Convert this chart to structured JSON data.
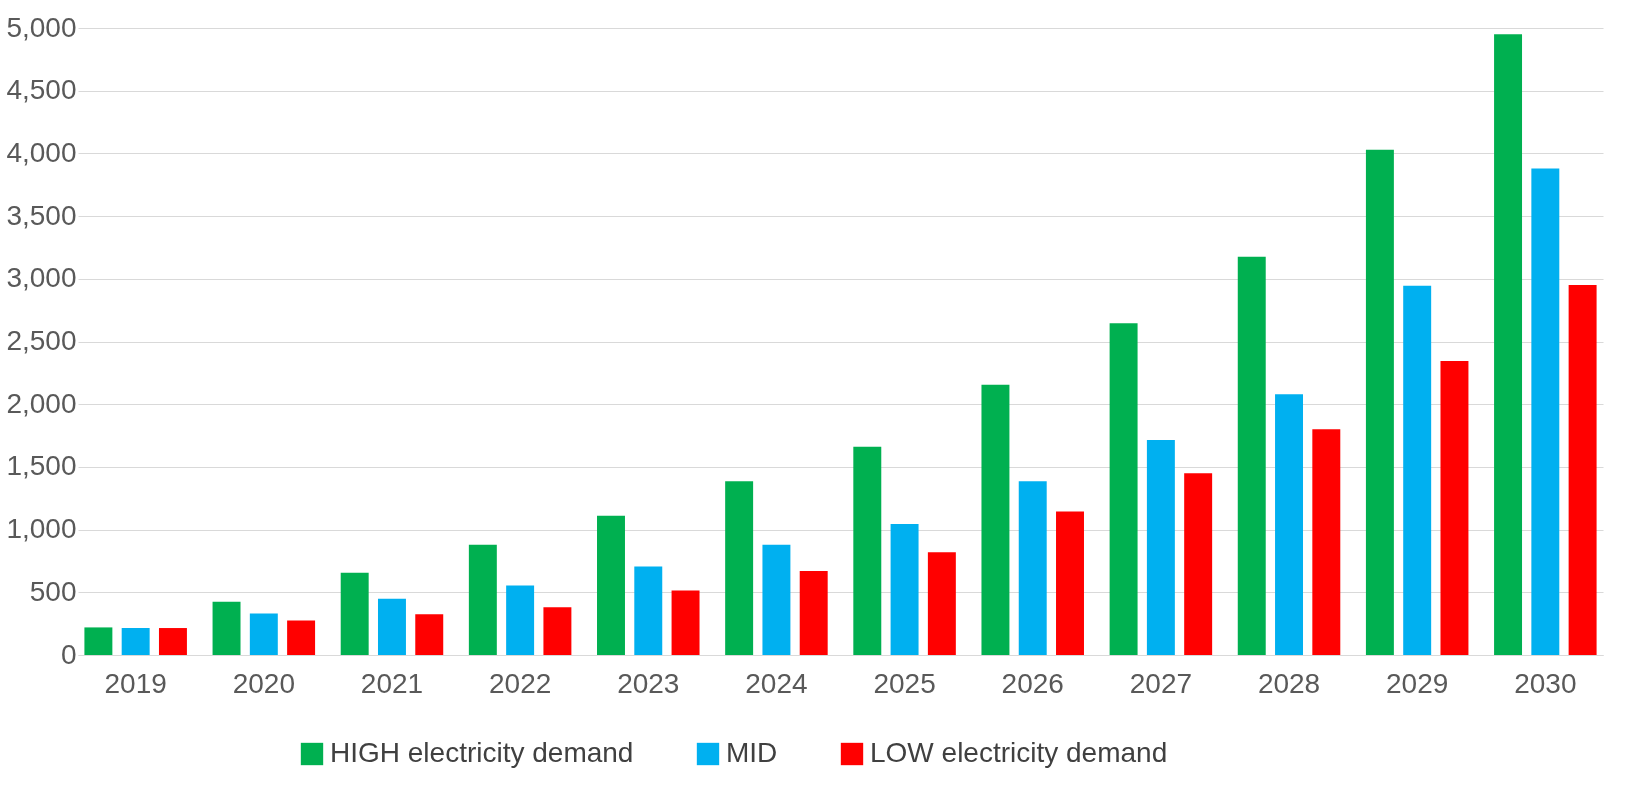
{
  "chart_data": {
    "type": "bar",
    "categories": [
      "2019",
      "2020",
      "2021",
      "2022",
      "2023",
      "2024",
      "2025",
      "2026",
      "2027",
      "2028",
      "2029",
      "2030"
    ],
    "series": [
      {
        "name": "HIGH electricity demand",
        "color": "#00b050",
        "values": [
          220,
          425,
          655,
          880,
          1110,
          1385,
          1660,
          2155,
          2645,
          3175,
          4030,
          4950
        ]
      },
      {
        "name": "MID",
        "color": "#00b0f0",
        "values": [
          215,
          330,
          448,
          555,
          705,
          880,
          1045,
          1385,
          1715,
          2080,
          2945,
          3880
        ]
      },
      {
        "name": "LOW electricity demand",
        "color": "#ff0000",
        "values": [
          215,
          275,
          325,
          380,
          515,
          670,
          820,
          1145,
          1450,
          1800,
          2345,
          2950
        ]
      }
    ],
    "ylim": [
      0,
      5000
    ],
    "yticks": [
      0,
      {
        "value": 500,
        "label": "500"
      },
      {
        "value": 1000,
        "label": "1,000"
      },
      {
        "value": 1500,
        "label": "1,500"
      },
      {
        "value": 2000,
        "label": "2,000"
      },
      {
        "value": 2500,
        "label": "2,500"
      },
      {
        "value": 3000,
        "label": "3,000"
      },
      {
        "value": 3500,
        "label": "3,500"
      },
      {
        "value": 4000,
        "label": "4,000"
      },
      {
        "value": 4500,
        "label": "4,500"
      },
      {
        "value": 5000,
        "label": "5,000"
      }
    ],
    "grid": "y",
    "legend": "bottom"
  }
}
